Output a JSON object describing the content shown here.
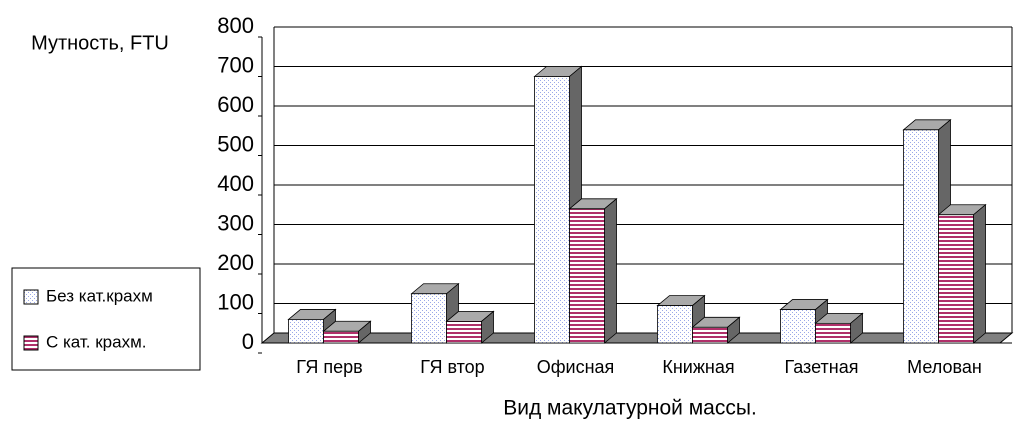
{
  "chart_data": {
    "type": "bar3d",
    "y_label": "Мутность, FTU",
    "x_label": "Вид макулатурной массы.",
    "categories": [
      "ГЯ перв",
      "ГЯ втор",
      "Офисная",
      "Книжная",
      "Газетная",
      "Мелован"
    ],
    "series": [
      {
        "name": "Без кат.крахм",
        "color": "#9aa8e8",
        "values": [
          85,
          150,
          700,
          120,
          110,
          565
        ]
      },
      {
        "name": "С кат. крахм.",
        "color": "#b0306a",
        "values": [
          55,
          80,
          365,
          65,
          75,
          350
        ]
      }
    ],
    "ylim": [
      0,
      800
    ],
    "yticks": [
      0,
      100,
      200,
      300,
      400,
      500,
      600,
      700,
      800
    ],
    "grid": true,
    "legend": "left"
  }
}
